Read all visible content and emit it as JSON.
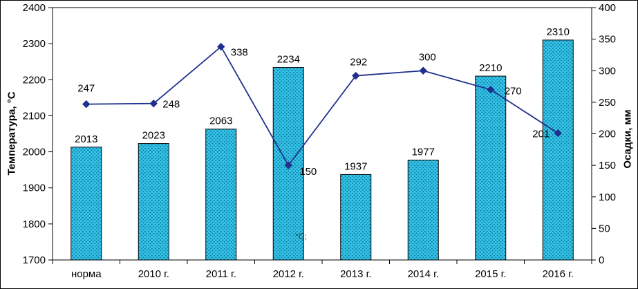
{
  "chart_data": {
    "type": "bar",
    "subtype": "combo-bar-line",
    "categories": [
      "норма",
      "2010 г.",
      "2011 г.",
      "2012 г.",
      "2013 г.",
      "2014 г.",
      "2015 г.",
      "2016 г."
    ],
    "series": [
      {
        "name": "temperature-bars",
        "type": "bar",
        "axis": "left",
        "values": [
          2013,
          2023,
          2063,
          2234,
          1937,
          1977,
          2210,
          2310
        ],
        "fill_color": "#38c6e6",
        "pattern_dot_color": "#0c7fae",
        "border_color": "#000000"
      },
      {
        "name": "precipitation-line",
        "type": "line",
        "axis": "right",
        "values": [
          247,
          248,
          338,
          150,
          292,
          300,
          270,
          201
        ],
        "color": "#20308c",
        "marker": "diamond",
        "label_offsets": [
          [
            0,
            -18,
            "middle"
          ],
          [
            13,
            6,
            "start"
          ],
          [
            14,
            13,
            "start"
          ],
          [
            16,
            14,
            "start"
          ],
          [
            4,
            -15,
            "middle"
          ],
          [
            6,
            -15,
            "middle"
          ],
          [
            20,
            7,
            "start"
          ],
          [
            -12,
            6,
            "end"
          ]
        ]
      }
    ],
    "left_axis": {
      "label": "Температура, °С",
      "min": 1700,
      "max": 2400,
      "step": 100
    },
    "right_axis": {
      "label": "Осадки, мм",
      "min": 0,
      "max": 400,
      "step": 50
    },
    "annotation": "°С;",
    "grid": false,
    "legend": "none",
    "title": ""
  }
}
